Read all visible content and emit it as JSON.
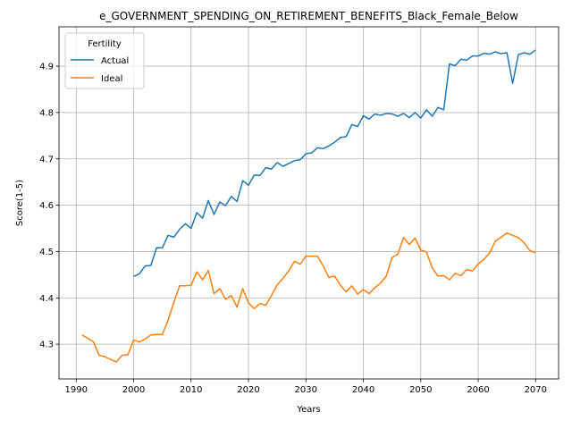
{
  "chart_data": {
    "type": "line",
    "title": "e_GOVERNMENT_SPENDING_ON_RETIREMENT_BENEFITS_Black_Female_Below",
    "xlabel": "Years",
    "ylabel": "Score(1-5)",
    "xlim": [
      1987,
      2074
    ],
    "ylim": [
      4.225,
      4.985
    ],
    "xticks": [
      1990,
      2000,
      2010,
      2020,
      2030,
      2040,
      2050,
      2060,
      2070
    ],
    "yticks": [
      4.3,
      4.4,
      4.5,
      4.6,
      4.7,
      4.8,
      4.9
    ],
    "grid": true,
    "legend": {
      "title": "Fertility",
      "placement": "top-left"
    },
    "series": [
      {
        "name": "Actual",
        "color": "#1f77b4",
        "x": [
          2000,
          2001,
          2002,
          2003,
          2004,
          2005,
          2006,
          2007,
          2008,
          2009,
          2010,
          2011,
          2012,
          2013,
          2014,
          2015,
          2016,
          2017,
          2018,
          2019,
          2020,
          2021,
          2022,
          2023,
          2024,
          2025,
          2026,
          2027,
          2028,
          2029,
          2030,
          2031,
          2032,
          2033,
          2034,
          2035,
          2036,
          2037,
          2038,
          2039,
          2040,
          2041,
          2042,
          2043,
          2044,
          2045,
          2046,
          2047,
          2048,
          2049,
          2050,
          2051,
          2052,
          2053,
          2054,
          2055,
          2056,
          2057,
          2058,
          2059,
          2060,
          2061,
          2062,
          2063,
          2064,
          2065,
          2066,
          2067,
          2068,
          2069,
          2070
        ],
        "values": [
          4.446,
          4.452,
          4.469,
          4.47,
          4.508,
          4.508,
          4.535,
          4.531,
          4.548,
          4.56,
          4.55,
          4.584,
          4.572,
          4.61,
          4.58,
          4.607,
          4.599,
          4.619,
          4.608,
          4.653,
          4.643,
          4.665,
          4.664,
          4.681,
          4.678,
          4.692,
          4.684,
          4.69,
          4.696,
          4.698,
          4.711,
          4.713,
          4.724,
          4.722,
          4.728,
          4.736,
          4.746,
          4.748,
          4.774,
          4.77,
          4.793,
          4.786,
          4.797,
          4.794,
          4.798,
          4.797,
          4.792,
          4.798,
          4.789,
          4.8,
          4.788,
          4.806,
          4.792,
          4.811,
          4.806,
          4.905,
          4.901,
          4.915,
          4.913,
          4.922,
          4.922,
          4.928,
          4.926,
          4.931,
          4.927,
          4.929,
          4.863,
          4.925,
          4.929,
          4.926,
          4.935
        ]
      },
      {
        "name": "Ideal",
        "color": "#ff7f0e",
        "x": [
          1991,
          1992,
          1993,
          1994,
          1995,
          1996,
          1997,
          1998,
          1999,
          2000,
          2001,
          2002,
          2003,
          2004,
          2005,
          2006,
          2007,
          2008,
          2009,
          2010,
          2011,
          2012,
          2013,
          2014,
          2015,
          2016,
          2017,
          2018,
          2019,
          2020,
          2021,
          2022,
          2023,
          2024,
          2025,
          2026,
          2027,
          2028,
          2029,
          2030,
          2031,
          2032,
          2033,
          2034,
          2035,
          2036,
          2037,
          2038,
          2039,
          2040,
          2041,
          2042,
          2043,
          2044,
          2045,
          2046,
          2047,
          2048,
          2049,
          2050,
          2051,
          2052,
          2053,
          2054,
          2055,
          2056,
          2057,
          2058,
          2059,
          2060,
          2061,
          2062,
          2063,
          2064,
          2065,
          2066,
          2067,
          2068,
          2069,
          2070
        ],
        "values": [
          4.32,
          4.313,
          4.305,
          4.276,
          4.273,
          4.267,
          4.262,
          4.276,
          4.277,
          4.309,
          4.305,
          4.311,
          4.32,
          4.321,
          4.321,
          4.352,
          4.39,
          4.426,
          4.426,
          4.427,
          4.456,
          4.439,
          4.459,
          4.409,
          4.42,
          4.397,
          4.405,
          4.38,
          4.42,
          4.389,
          4.377,
          4.388,
          4.384,
          4.405,
          4.428,
          4.442,
          4.458,
          4.479,
          4.473,
          4.49,
          4.49,
          4.49,
          4.469,
          4.444,
          4.447,
          4.427,
          4.413,
          4.426,
          4.408,
          4.418,
          4.409,
          4.422,
          4.432,
          4.447,
          4.487,
          4.494,
          4.53,
          4.515,
          4.529,
          4.503,
          4.499,
          4.465,
          4.447,
          4.448,
          4.439,
          4.453,
          4.448,
          4.461,
          4.458,
          4.473,
          4.483,
          4.497,
          4.523,
          4.531,
          4.54,
          4.535,
          4.53,
          4.519,
          4.502,
          4.497
        ]
      }
    ]
  }
}
